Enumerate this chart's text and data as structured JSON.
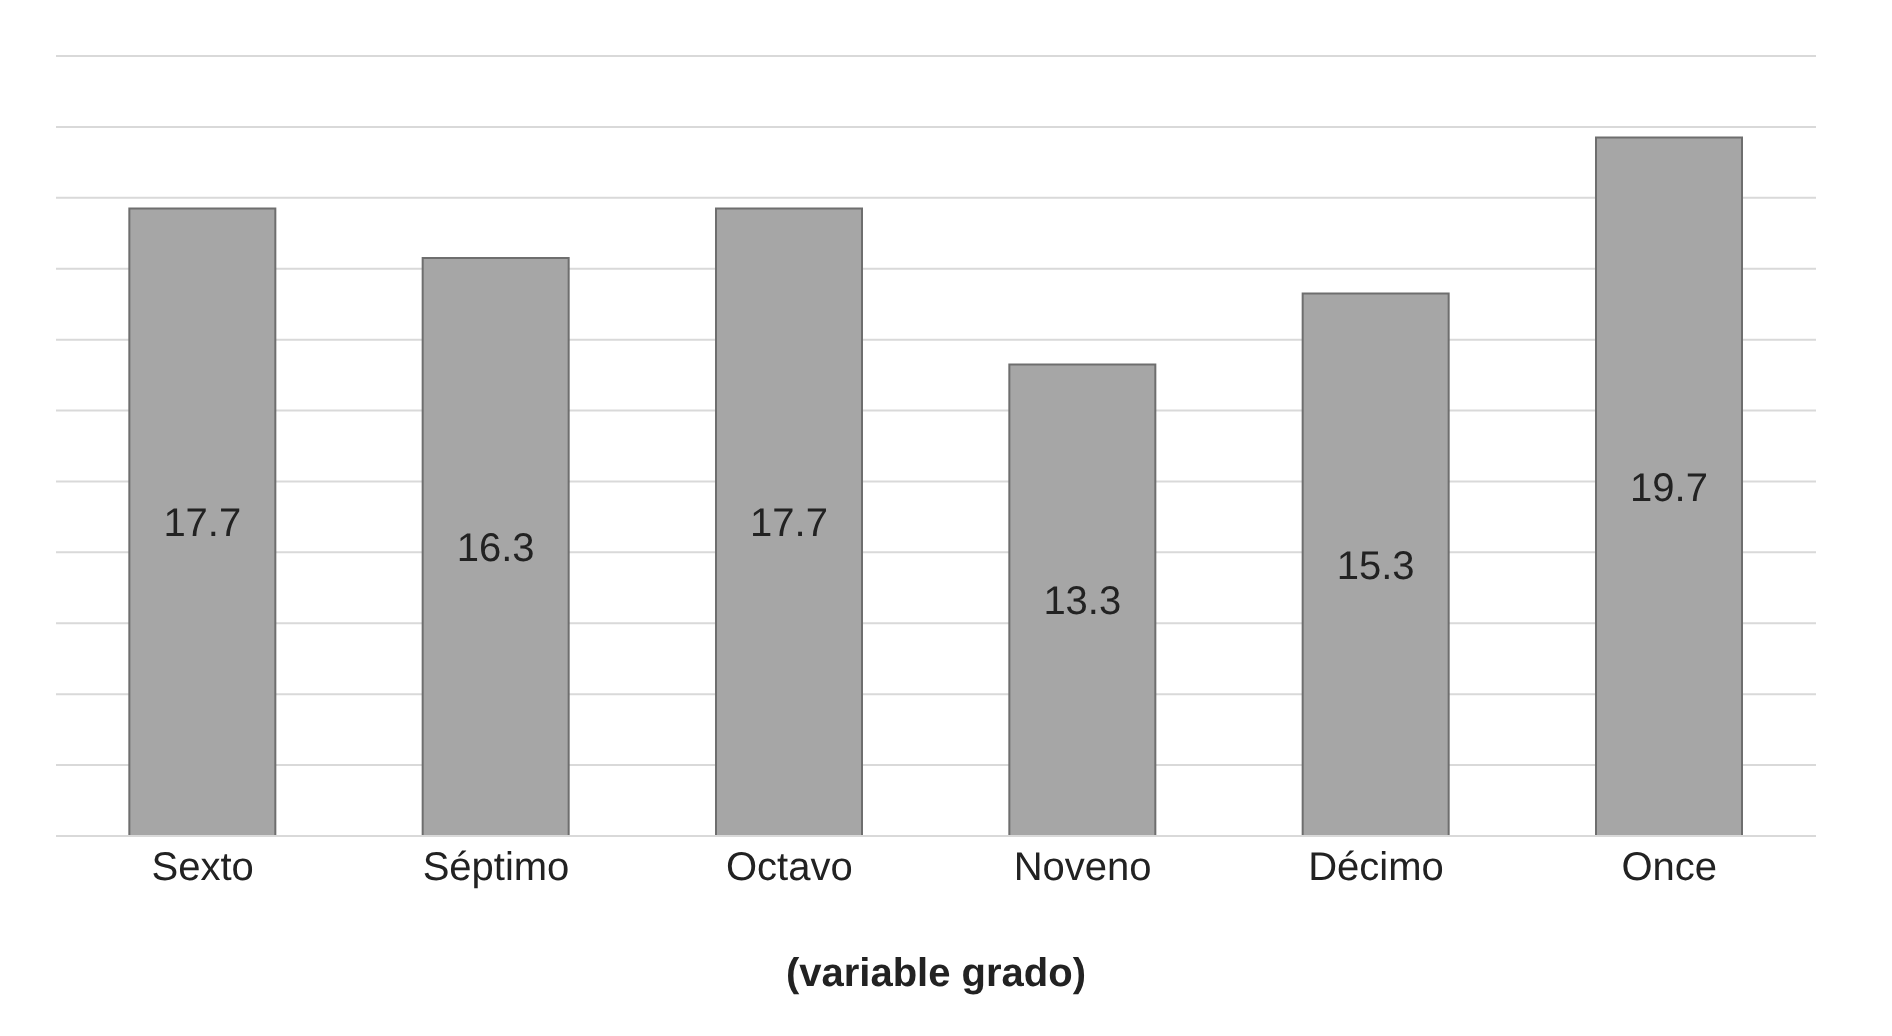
{
  "chart_data": {
    "type": "bar",
    "xlabel": "(variable grado)",
    "categories": [
      "Sexto",
      "Séptimo",
      "Octavo",
      "Noveno",
      "Décimo",
      "Once"
    ],
    "values": [
      17.7,
      16.3,
      17.7,
      13.3,
      15.3,
      19.7
    ],
    "color": "#a6a6a6",
    "ylim": [
      0,
      22
    ],
    "yticks": [
      {
        "value": 0,
        "label": null
      },
      {
        "value": 2,
        "label": null
      },
      {
        "value": 4,
        "label": null
      },
      {
        "value": 6,
        "label": null
      },
      {
        "value": 8,
        "label": null
      },
      {
        "value": 10,
        "label": null
      },
      {
        "value": 12,
        "label": null
      },
      {
        "value": 14,
        "label": null
      },
      {
        "value": 16,
        "label": null
      },
      {
        "value": 18,
        "label": null
      },
      {
        "value": 20,
        "label": null
      },
      {
        "value": 22,
        "label": null
      }
    ],
    "grid": "y",
    "tick_labels": "x",
    "data_labels": true,
    "legend": false
  }
}
